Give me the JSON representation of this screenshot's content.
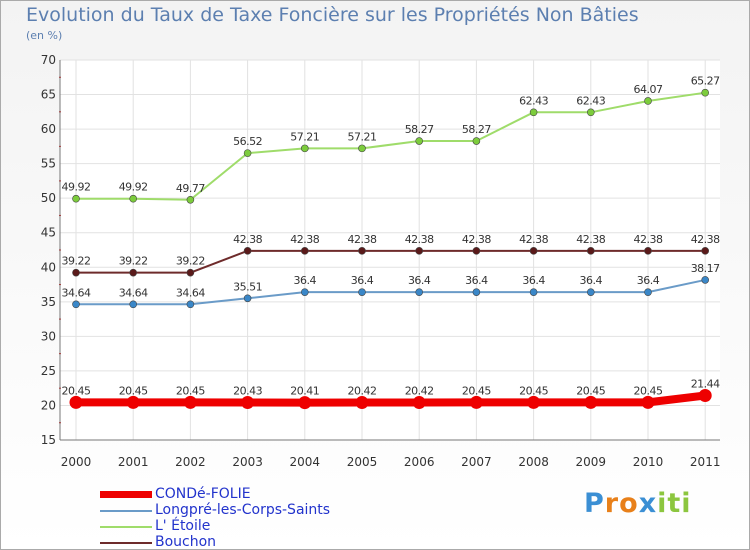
{
  "title": "Evolution du Taux de Taxe Foncière sur les Propriétés Non Bâties",
  "unit_label": "(en %)",
  "logo": {
    "letters": [
      "P",
      "r",
      "o",
      "x",
      "i",
      "t",
      "i"
    ],
    "colors": [
      "#3b8fd4",
      "#e8801a",
      "#e8801a",
      "#3b8fd4",
      "#8cc63f",
      "#8cc63f",
      "#8cc63f"
    ]
  },
  "chart_data": {
    "type": "line",
    "title": "Evolution du Taux de Taxe Foncière sur les Propriétés Non Bâties",
    "ylabel": "(en %)",
    "xlabel": "",
    "ylim": [
      15,
      70
    ],
    "yticks": [
      15,
      20,
      25,
      30,
      35,
      40,
      45,
      50,
      55,
      60,
      65,
      70
    ],
    "categories": [
      "2000",
      "2001",
      "2002",
      "2003",
      "2004",
      "2005",
      "2006",
      "2007",
      "2008",
      "2009",
      "2010",
      "2011"
    ],
    "grid": true,
    "series": [
      {
        "name": "CONDé-FOLIE",
        "color": "#ee0000",
        "marker_fill": "#ee0000",
        "highlight": true,
        "values": [
          20.45,
          20.45,
          20.45,
          20.43,
          20.41,
          20.42,
          20.42,
          20.45,
          20.45,
          20.45,
          20.45,
          21.44
        ],
        "labels": [
          "20.45",
          "20.45",
          "20.45",
          "20.43",
          "20.41",
          "20.42",
          "20.42",
          "20.45",
          "20.45",
          "20.45",
          "20.45",
          "21.44"
        ]
      },
      {
        "name": "Longpré-les-Corps-Saints",
        "color": "#6a9bc8",
        "marker_fill": "#3a87c8",
        "highlight": false,
        "values": [
          34.64,
          34.64,
          34.64,
          35.51,
          36.4,
          36.4,
          36.4,
          36.4,
          36.4,
          36.4,
          36.4,
          38.17
        ],
        "labels": [
          "34.64",
          "34.64",
          "34.64",
          "35.51",
          "36.4",
          "36.4",
          "36.4",
          "36.4",
          "36.4",
          "36.4",
          "36.4",
          "38.17"
        ]
      },
      {
        "name": "L' Étoile",
        "color": "#9fdc6a",
        "marker_fill": "#7ccc3c",
        "highlight": false,
        "values": [
          49.92,
          49.92,
          49.77,
          56.52,
          57.21,
          57.21,
          58.27,
          58.27,
          62.43,
          62.43,
          64.07,
          65.27
        ],
        "labels": [
          "49.92",
          "49.92",
          "49.77",
          "56.52",
          "57.21",
          "57.21",
          "58.27",
          "58.27",
          "62.43",
          "62.43",
          "64.07",
          "65.27"
        ]
      },
      {
        "name": "Bouchon",
        "color": "#6e2b2b",
        "marker_fill": "#5a1a1a",
        "highlight": false,
        "values": [
          39.22,
          39.22,
          39.22,
          42.38,
          42.38,
          42.38,
          42.38,
          42.38,
          42.38,
          42.38,
          42.38,
          42.38
        ],
        "labels": [
          "39.22",
          "39.22",
          "39.22",
          "42.38",
          "42.38",
          "42.38",
          "42.38",
          "42.38",
          "42.38",
          "42.38",
          "42.38",
          "42.38"
        ]
      }
    ]
  }
}
